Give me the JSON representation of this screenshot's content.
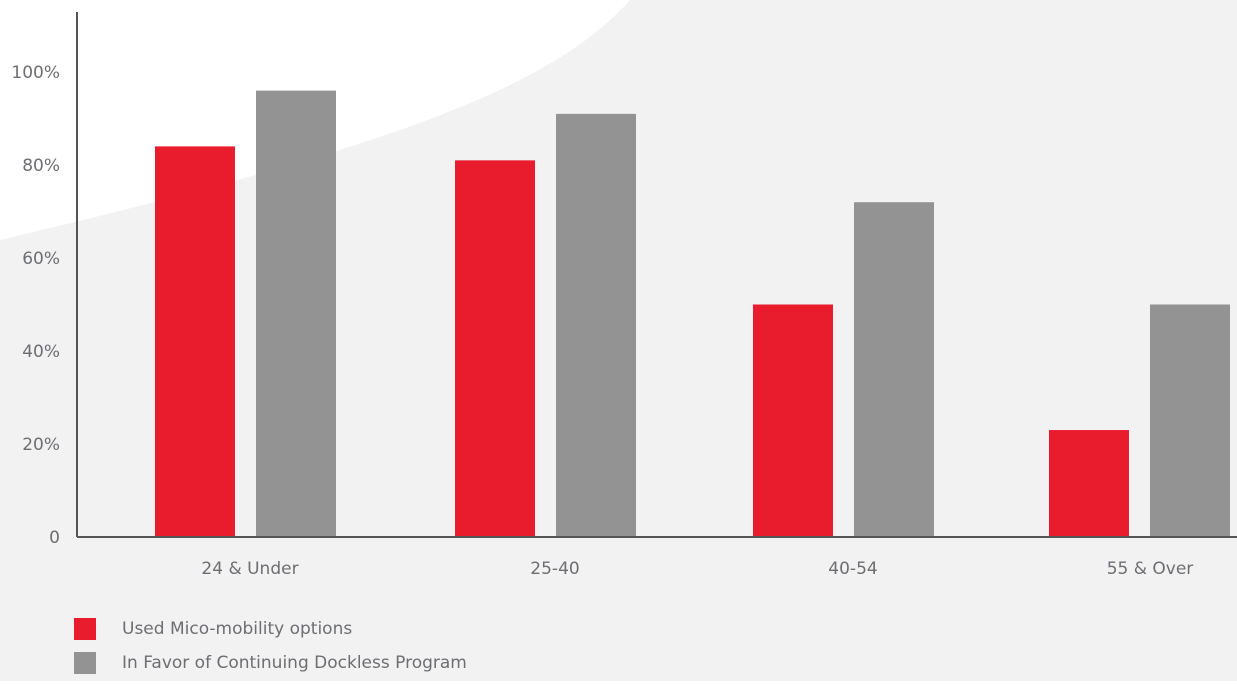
{
  "chart_data": {
    "type": "bar",
    "categories": [
      "24 & Under",
      "25-40",
      "40-54",
      "55 & Over"
    ],
    "series": [
      {
        "name": "Used Mico-mobility options",
        "values": [
          84,
          81,
          50,
          23
        ],
        "color": "#e81c2c"
      },
      {
        "name": "In Favor of Continuing Dockless Program",
        "values": [
          96,
          91,
          72,
          50
        ],
        "color": "#939393"
      }
    ],
    "y_ticks": [
      "0",
      "20%",
      "40%",
      "60%",
      "80%",
      "100%"
    ],
    "ylim": [
      0,
      100
    ],
    "grid": false,
    "legend_position": "bottom-left"
  },
  "colors": {
    "axis": "#555555",
    "label": "#6d6e71",
    "background_curve": "#f2f2f2"
  }
}
